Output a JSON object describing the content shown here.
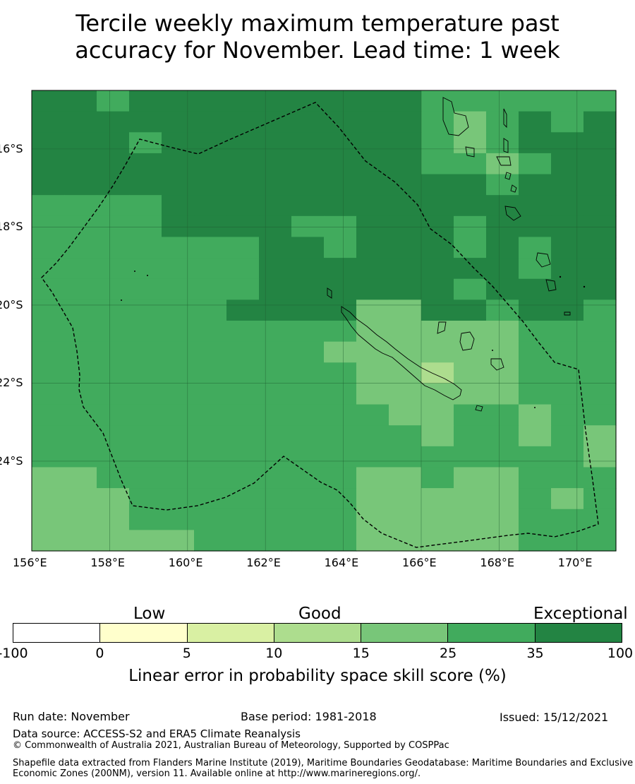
{
  "title_line1": "Tercile weekly maximum temperature past",
  "title_line2": "accuracy for November. Lead time: 1 week",
  "map": {
    "lon_range": [
      156.0,
      171.0
    ],
    "lat_range": [
      -26.3,
      -14.5
    ],
    "lat_ticks": [
      "16°S",
      "18°S",
      "20°S",
      "22°S",
      "24°S"
    ],
    "lat_tick_values": [
      -16,
      -18,
      -20,
      -22,
      -24
    ],
    "lon_ticks": [
      "156°E",
      "158°E",
      "160°E",
      "162°E",
      "164°E",
      "166°E",
      "168°E",
      "170°E"
    ],
    "lon_tick_values": [
      156,
      158,
      160,
      162,
      164,
      166,
      168,
      170
    ],
    "grid_lines": true,
    "boundary_style": "dashed",
    "cell_classes": {
      "0": "#78c679",
      "1": "#41ab5d",
      "2": "#238443",
      "3": "#addd8e"
    }
  },
  "legend": {
    "category_labels": [
      "Low",
      "Good",
      "Exceptional"
    ],
    "colors": [
      "#ffffff",
      "#ffffcc",
      "#d9f0a3",
      "#addd8e",
      "#78c679",
      "#41ab5d",
      "#238443"
    ],
    "tick_labels": [
      "-100",
      "0",
      "5",
      "10",
      "15",
      "25",
      "35",
      "100"
    ],
    "title": "Linear error in probability space skill score (%)"
  },
  "footer": {
    "run_date": "Run date: November",
    "base_period": "Base period: 1981-2018",
    "issued": "Issued: 15/12/2021",
    "data_source": "Data source: ACCESS-S2 and ERA5 Climate Reanalysis",
    "copyright": "© Commonwealth of Australia 2021, Australian Bureau of Meteorology, Supported by COSPPac",
    "shapefile": "Shapefile data extracted from Flanders Marine Institute (2019), Maritime Boundaries Geodatabase: Maritime Boundaries and Exclusive Economic Zones (200NM), version 11. Available online at http://www.marineregions.org/."
  }
}
